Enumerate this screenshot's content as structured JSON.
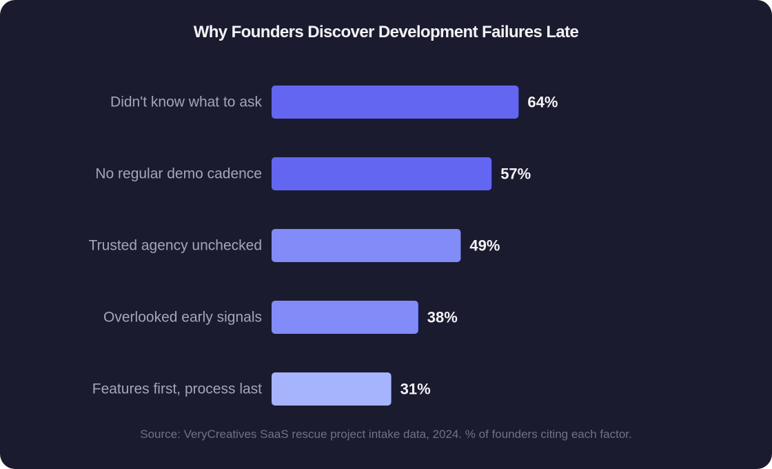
{
  "chart_data": {
    "type": "bar",
    "orientation": "horizontal",
    "title": "Why Founders Discover Development Failures Late",
    "categories": [
      "Didn't know what to ask",
      "No regular demo cadence",
      "Trusted agency unchecked",
      "Overlooked early signals",
      "Features first, process last"
    ],
    "values": [
      64,
      57,
      49,
      38,
      31
    ],
    "value_labels": [
      "64%",
      "57%",
      "49%",
      "38%",
      "31%"
    ],
    "unit": "%",
    "xlim": [
      0,
      100
    ],
    "grid": false,
    "legend": "none",
    "bar_colors": [
      "#6366f1",
      "#6366f1",
      "#818cf8",
      "#818cf8",
      "#a5b4fc"
    ],
    "footnote": "Source: VeryCreatives SaaS rescue project intake data, 2024. % of founders citing each factor."
  },
  "colors": {
    "background": "#1b1b2f",
    "title_text": "#f2f2f7",
    "category_text": "#a3a6b8",
    "value_text": "#f2f2f7",
    "footnote_text": "#6f7186"
  }
}
